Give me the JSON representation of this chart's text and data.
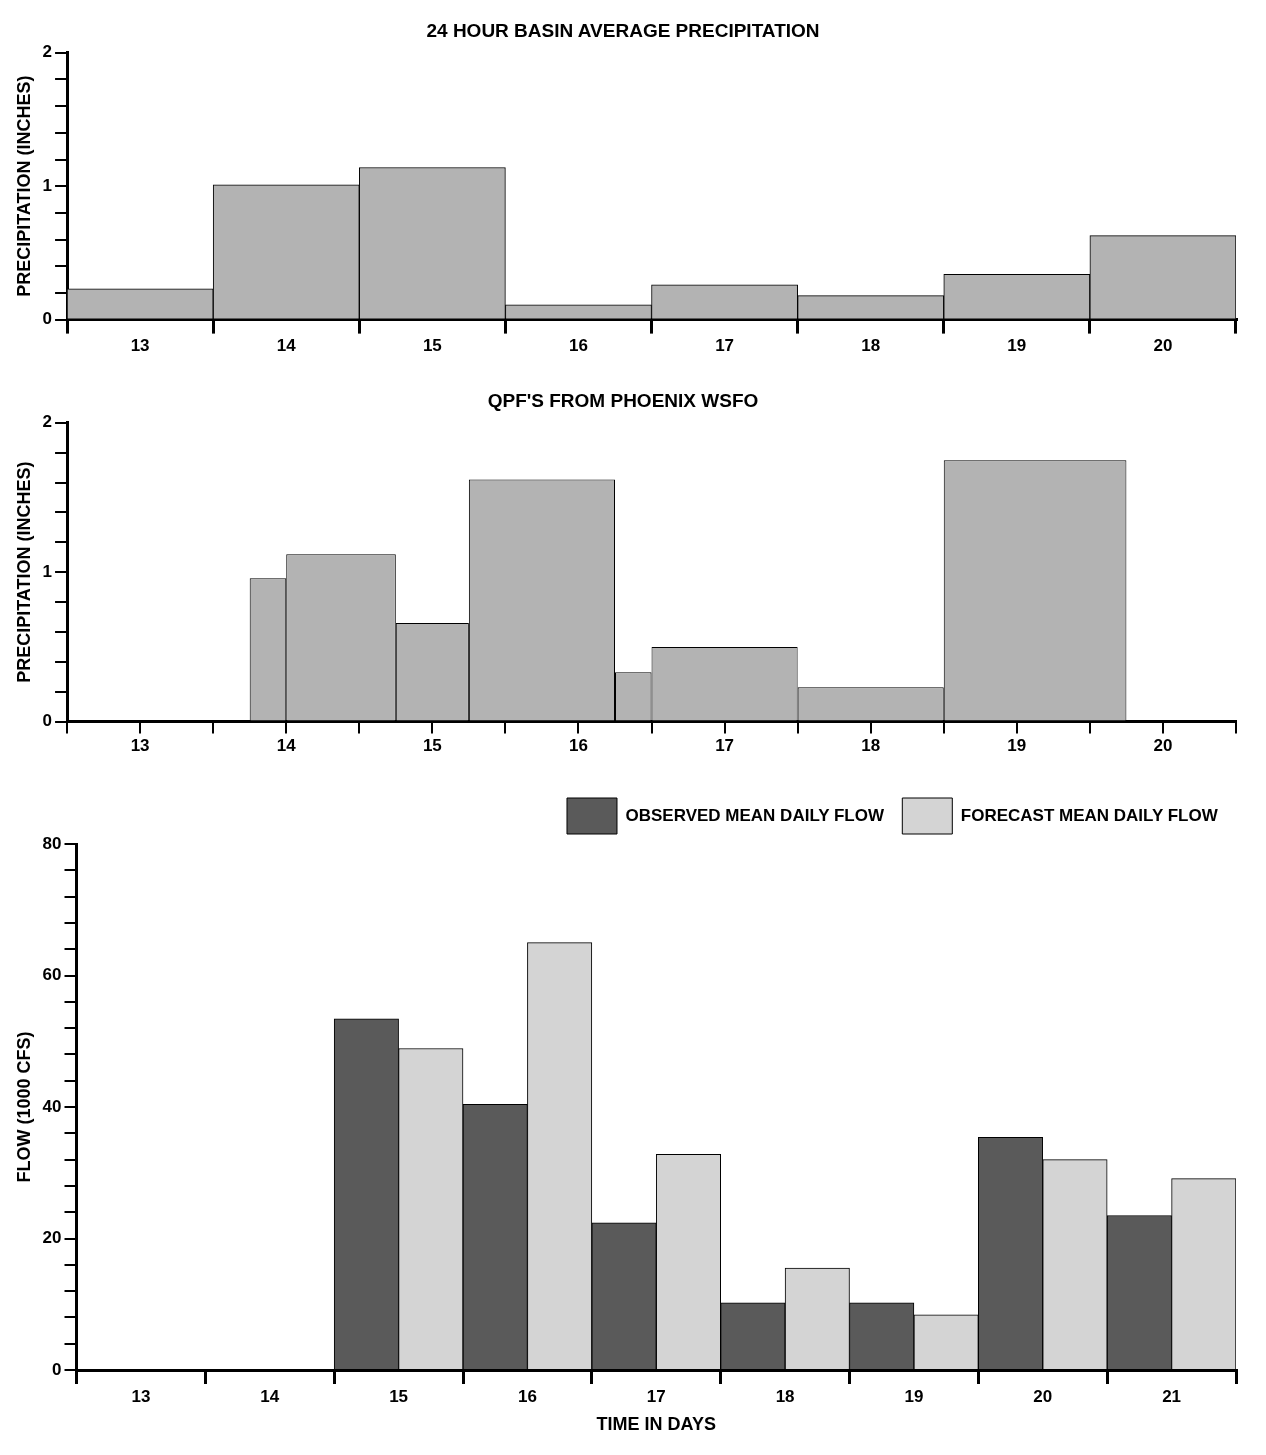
{
  "chart_data": [
    {
      "type": "bar",
      "title": "24 HOUR BASIN AVERAGE PRECIPITATION",
      "ylabel": "PRECIPITATION (INCHES)",
      "categories": [
        "13",
        "14",
        "15",
        "16",
        "17",
        "18",
        "19",
        "20"
      ],
      "values": [
        0.23,
        1.01,
        1.14,
        0.11,
        0.26,
        0.18,
        0.34,
        0.63
      ],
      "color": "#b3b3b3",
      "ylim": [
        0,
        2
      ],
      "yticks": [
        0,
        {
          "value": 0.2,
          "label": null
        },
        {
          "value": 0.4,
          "label": null
        },
        {
          "value": 0.6,
          "label": null
        },
        {
          "value": 0.8,
          "label": null
        },
        1,
        {
          "value": 1.2,
          "label": null
        },
        {
          "value": 1.4,
          "label": null
        },
        {
          "value": 1.6,
          "label": null
        },
        {
          "value": 1.8,
          "label": null
        },
        2
      ]
    },
    {
      "type": "histogram",
      "title": "QPF'S FROM PHOENIX WSFO",
      "ylabel": "PRECIPITATION (INCHES)",
      "bins": [
        13.75,
        14,
        14.75,
        15.25,
        16.25,
        16.5,
        17.5,
        18.5,
        19.75
      ],
      "values": [
        0.96,
        1.12,
        0.66,
        1.62,
        0.33,
        0.5,
        0.23,
        1.75
      ],
      "color": "#b3b3b3",
      "xlim": [
        12.5,
        20.5
      ],
      "xticks": [
        {
          "value": 12.5,
          "label": null
        },
        13,
        {
          "value": 13.5,
          "label": null
        },
        14,
        {
          "value": 14.5,
          "label": null
        },
        15,
        {
          "value": 15.5,
          "label": null
        },
        16,
        {
          "value": 16.5,
          "label": null
        },
        17,
        {
          "value": 17.5,
          "label": null
        },
        18,
        {
          "value": 18.5,
          "label": null
        },
        19,
        {
          "value": 19.5,
          "label": null
        },
        20,
        {
          "value": 20.5,
          "label": null
        }
      ],
      "ylim": [
        0,
        2
      ],
      "yticks": [
        0,
        {
          "value": 0.2,
          "label": null
        },
        {
          "value": 0.4,
          "label": null
        },
        {
          "value": 0.6,
          "label": null
        },
        {
          "value": 0.8,
          "label": null
        },
        1,
        {
          "value": 1.2,
          "label": null
        },
        {
          "value": 1.4,
          "label": null
        },
        {
          "value": 1.6,
          "label": null
        },
        {
          "value": 1.8,
          "label": null
        },
        2
      ]
    },
    {
      "type": "bar",
      "xlabel": "TIME IN DAYS",
      "ylabel": "FLOW (1000 CFS)",
      "categories": [
        "13",
        "14",
        "15",
        "16",
        "17",
        "18",
        "19",
        "20",
        "21"
      ],
      "series": [
        {
          "name": "OBSERVED MEAN DAILY FLOW",
          "color": "#5a5a5a",
          "values": [
            null,
            null,
            53.4,
            40.4,
            22.4,
            10.2,
            10.2,
            35.4,
            23.5
          ]
        },
        {
          "name": "FORECAST MEAN DAILY FLOW",
          "color": "#d4d4d4",
          "values": [
            null,
            null,
            48.9,
            65,
            32.8,
            15.5,
            8.4,
            32,
            29.1
          ]
        }
      ],
      "ylim": [
        0,
        80
      ],
      "yticks": [
        0,
        {
          "value": 4,
          "label": null
        },
        {
          "value": 8,
          "label": null
        },
        {
          "value": 12,
          "label": null
        },
        {
          "value": 16,
          "label": null
        },
        20,
        {
          "value": 24,
          "label": null
        },
        {
          "value": 28,
          "label": null
        },
        {
          "value": 32,
          "label": null
        },
        {
          "value": 36,
          "label": null
        },
        40,
        {
          "value": 44,
          "label": null
        },
        {
          "value": 48,
          "label": null
        },
        {
          "value": 52,
          "label": null
        },
        {
          "value": 56,
          "label": null
        },
        60,
        {
          "value": 64,
          "label": null
        },
        {
          "value": 68,
          "label": null
        },
        {
          "value": 72,
          "label": null
        },
        {
          "value": 76,
          "label": null
        },
        80
      ],
      "legend": "top right"
    }
  ]
}
